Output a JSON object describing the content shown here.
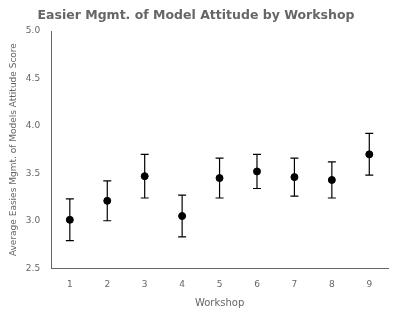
{
  "chart_data": {
    "type": "errorbar",
    "title": "Easier Mgmt. of Model Attitude by Workshop",
    "xlabel": "Workshop",
    "ylabel": "Average Easies Mgmt. of Models Attitude Score",
    "x": [
      1,
      2,
      3,
      4,
      5,
      6,
      7,
      8,
      9
    ],
    "values": [
      3.01,
      3.21,
      3.47,
      3.05,
      3.45,
      3.52,
      3.46,
      3.43,
      3.7
    ],
    "yerr_low": [
      0.22,
      0.21,
      0.23,
      0.22,
      0.21,
      0.18,
      0.2,
      0.19,
      0.22
    ],
    "yerr_high": [
      0.22,
      0.21,
      0.23,
      0.22,
      0.21,
      0.18,
      0.2,
      0.19,
      0.22
    ],
    "xlim": [
      0.5,
      9.5
    ],
    "xticks": [
      1,
      2,
      3,
      4,
      5,
      6,
      7,
      8,
      9
    ],
    "ylim": [
      2.5,
      5.0
    ],
    "yticks": [
      2.5,
      {
        "value": 3.0,
        "label": "3.0"
      },
      3.5,
      {
        "value": 4.0,
        "label": "4.0"
      },
      4.5,
      {
        "value": 5.0,
        "label": "5.0"
      }
    ],
    "color": "black",
    "marker": "circle",
    "grid": false
  }
}
